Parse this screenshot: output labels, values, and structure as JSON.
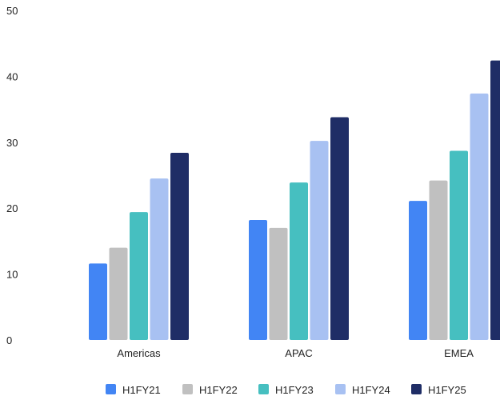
{
  "chart_data": {
    "type": "bar",
    "title": "",
    "xlabel": "",
    "ylabel": "",
    "categories": [
      "Americas",
      "APAC",
      "EMEA"
    ],
    "ylim": [
      0,
      50
    ],
    "yticks": [
      0,
      10,
      20,
      30,
      40,
      50
    ],
    "grid": false,
    "legend_position": "bottom",
    "series": [
      {
        "name": "H1FY21",
        "color": "#4285f4",
        "values": [
          11.6,
          18.2,
          21.1
        ]
      },
      {
        "name": "H1FY22",
        "color": "#c0c0c0",
        "values": [
          14.0,
          17.0,
          24.2
        ]
      },
      {
        "name": "H1FY23",
        "color": "#46bfc0",
        "values": [
          19.4,
          23.9,
          28.7
        ]
      },
      {
        "name": "H1FY24",
        "color": "#a8c1f2",
        "values": [
          24.5,
          30.2,
          37.4
        ]
      },
      {
        "name": "H1FY25",
        "color": "#1f2d66",
        "values": [
          28.4,
          33.8,
          42.4
        ]
      }
    ]
  }
}
